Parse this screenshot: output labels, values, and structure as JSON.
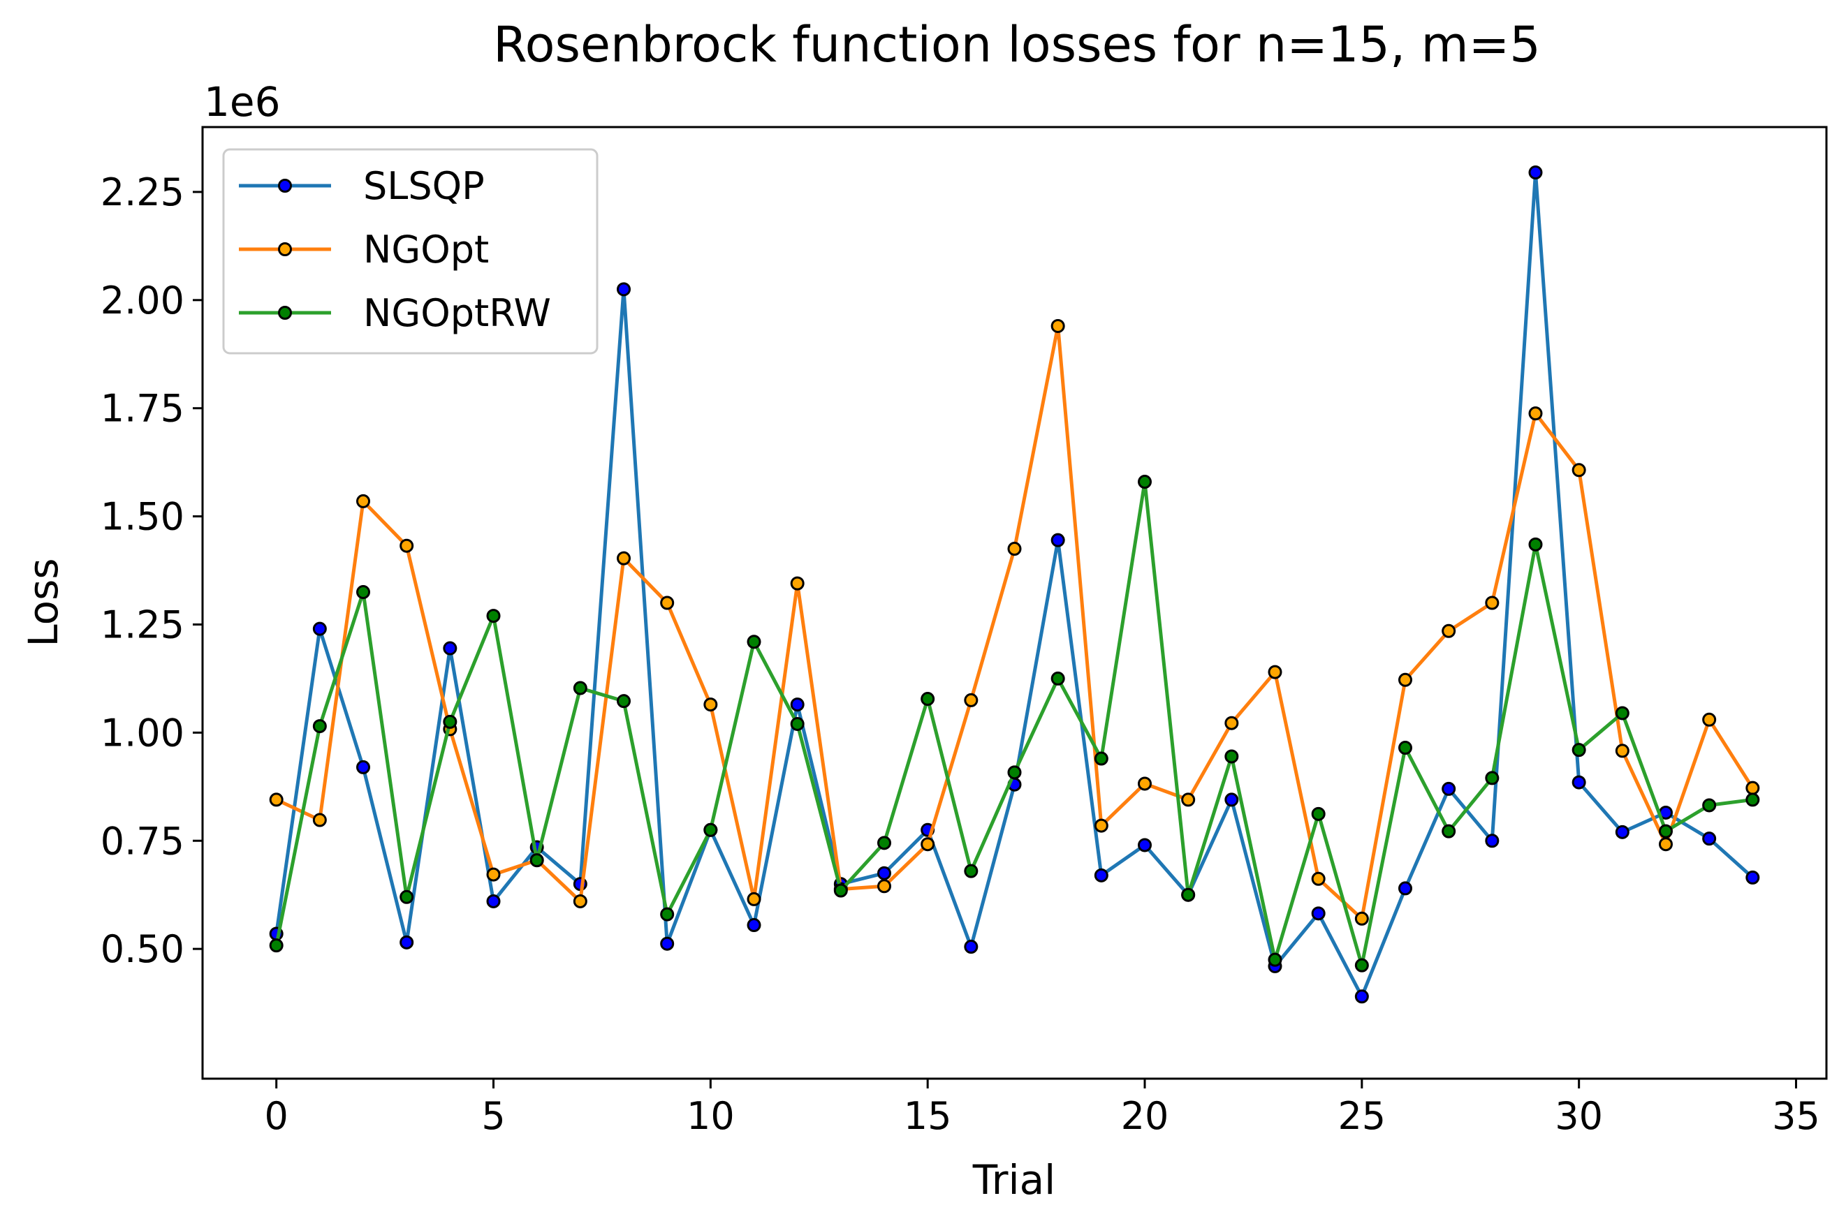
{
  "chart_data": {
    "type": "line",
    "title": "Rosenbrock function losses for n=15, m=5",
    "xlabel": "Trial",
    "ylabel": "Loss",
    "y_offset_label": "1e6",
    "xlim": [
      -1.7,
      35.7
    ],
    "ylim": [
      0.2,
      2.4
    ],
    "y_scale_factor": 1000000,
    "x_ticks": [
      0,
      5,
      10,
      15,
      20,
      25,
      30,
      35
    ],
    "x_tick_labels": [
      "0",
      "5",
      "10",
      "15",
      "20",
      "25",
      "30",
      "35"
    ],
    "y_ticks": [
      0.5,
      0.75,
      1.0,
      1.25,
      1.5,
      1.75,
      2.0,
      2.25
    ],
    "y_tick_labels": [
      "0.50",
      "0.75",
      "1.00",
      "1.25",
      "1.50",
      "1.75",
      "2.00",
      "2.25"
    ],
    "grid": false,
    "legend_position": "top-left",
    "x": [
      0,
      1,
      2,
      3,
      4,
      5,
      6,
      7,
      8,
      9,
      10,
      11,
      12,
      13,
      14,
      15,
      16,
      17,
      18,
      19,
      20,
      21,
      22,
      23,
      24,
      25,
      26,
      27,
      28,
      29,
      30,
      31,
      32,
      33,
      34
    ],
    "series": [
      {
        "name": "SLSQP",
        "color": "#1f77b4",
        "marker_face": "#0000ff",
        "values": [
          0.535,
          1.24,
          0.92,
          0.515,
          1.195,
          0.61,
          0.735,
          0.65,
          2.025,
          0.512,
          0.775,
          0.555,
          1.065,
          0.65,
          0.675,
          0.775,
          0.505,
          0.88,
          1.445,
          0.67,
          0.74,
          0.625,
          0.845,
          0.46,
          0.582,
          0.39,
          0.64,
          0.87,
          0.75,
          2.295,
          0.885,
          0.77,
          0.815,
          0.755,
          0.665
        ]
      },
      {
        "name": "NGOpt",
        "color": "#ff7f0e",
        "marker_face": "#ffa500",
        "values": [
          0.845,
          0.798,
          1.535,
          1.432,
          1.008,
          0.672,
          0.705,
          0.61,
          1.403,
          1.3,
          1.065,
          0.615,
          1.345,
          0.638,
          0.645,
          0.742,
          1.075,
          1.425,
          1.94,
          0.785,
          0.882,
          0.845,
          1.022,
          1.14,
          0.662,
          0.57,
          1.122,
          1.235,
          1.3,
          1.738,
          1.607,
          0.958,
          0.742,
          1.03,
          0.872
        ]
      },
      {
        "name": "NGOptRW",
        "color": "#2ca02c",
        "marker_face": "#008000",
        "values": [
          0.508,
          1.015,
          1.325,
          0.62,
          1.025,
          1.27,
          0.705,
          1.103,
          1.073,
          0.58,
          0.775,
          1.21,
          1.02,
          0.635,
          0.745,
          1.078,
          0.68,
          0.908,
          1.125,
          0.94,
          1.58,
          0.625,
          0.945,
          0.475,
          0.812,
          0.462,
          0.965,
          0.772,
          0.895,
          1.435,
          0.96,
          1.045,
          0.772,
          0.832,
          0.845
        ]
      }
    ]
  }
}
